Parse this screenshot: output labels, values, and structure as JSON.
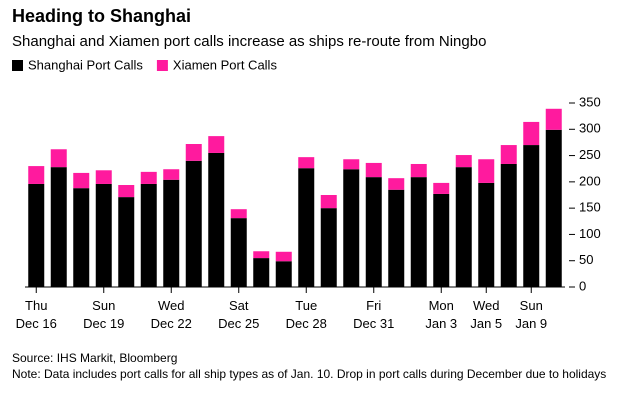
{
  "chart_data": {
    "type": "stacked_bar",
    "title": "Heading to Shanghai",
    "subtitle": "Shanghai and Xiamen port calls increase as ships re-route from Ningbo",
    "categories": [
      "Thu\nDec 16",
      null,
      null,
      "Sun\nDec 19",
      null,
      null,
      "Wed\nDec 22",
      null,
      null,
      "Sat\nDec 25",
      null,
      null,
      "Tue\nDec 28",
      null,
      null,
      "Fri\nDec 31",
      null,
      null,
      "Mon\nJan 3",
      null,
      "Wed\nJan 5",
      null,
      "Sun\nJan 9",
      null
    ],
    "series": [
      {
        "name": "Shanghai Port Calls",
        "color": "#000000",
        "values": [
          196,
          228,
          188,
          196,
          171,
          196,
          204,
          240,
          255,
          131,
          55,
          49,
          226,
          150,
          224,
          209,
          185,
          209,
          177,
          228,
          198,
          234,
          270,
          299
        ]
      },
      {
        "name": "Xiamen Port Calls",
        "color": "#ff1a9e",
        "values": [
          34,
          34,
          29,
          26,
          23,
          23,
          20,
          32,
          32,
          17,
          13,
          18,
          21,
          25,
          19,
          27,
          22,
          25,
          21,
          23,
          45,
          36,
          44,
          40
        ]
      }
    ],
    "ylim": [
      0,
      350
    ],
    "yticks": [
      0,
      50,
      100,
      150,
      200,
      250,
      300,
      350
    ],
    "y_axis_side": "right",
    "legend": "top-left",
    "notes": [
      "Source: IHS Markit, Bloomberg",
      "Note: Data includes port calls for all ship types as of Jan. 10. Drop in port calls during December due to holidays"
    ]
  }
}
